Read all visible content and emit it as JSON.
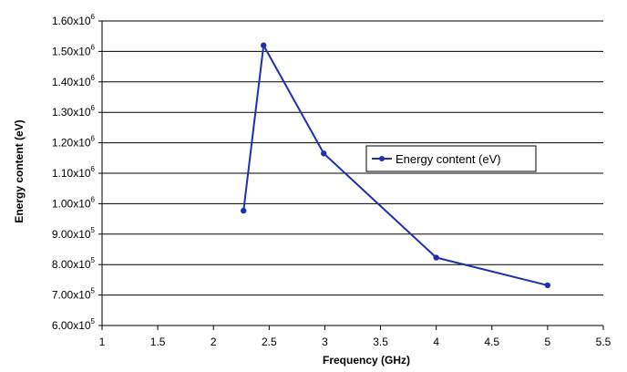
{
  "chart_data": {
    "type": "line",
    "title": "",
    "xlabel": "Frequency (GHz)",
    "ylabel": "Energy content (eV)",
    "xlim": [
      1,
      5.5
    ],
    "ylim": [
      600000,
      1600000
    ],
    "grid": {
      "horizontal": true,
      "vertical": false
    },
    "legend": "center-right",
    "x_ticks": [
      1,
      1.5,
      2,
      2.5,
      3,
      3.5,
      4,
      4.5,
      5,
      5.5
    ],
    "x_tick_labels": [
      "1",
      "1.5",
      "2",
      "2.5",
      "3",
      "3.5",
      "4",
      "4.5",
      "5",
      "5.5"
    ],
    "y_ticks": [
      600000,
      700000,
      800000,
      900000,
      1000000,
      1100000,
      1200000,
      1300000,
      1400000,
      1500000,
      1600000
    ],
    "y_tick_labels": [
      {
        "mant": "6.00x10",
        "exp": "5"
      },
      {
        "mant": "7.00x10",
        "exp": "5"
      },
      {
        "mant": "8.00x10",
        "exp": "5"
      },
      {
        "mant": "9.00x10",
        "exp": "5"
      },
      {
        "mant": "1.00x10",
        "exp": "6"
      },
      {
        "mant": "1.10x10",
        "exp": "6"
      },
      {
        "mant": "1.20x10",
        "exp": "6"
      },
      {
        "mant": "1.30x10",
        "exp": "6"
      },
      {
        "mant": "1.40x10",
        "exp": "6"
      },
      {
        "mant": "1.50x10",
        "exp": "6"
      },
      {
        "mant": "1.60x10",
        "exp": "6"
      }
    ],
    "series": [
      {
        "name": "Energy content (eV)",
        "color": "#1f2fb0",
        "x": [
          2.27,
          2.45,
          2.99,
          4.0,
          5.0
        ],
        "y": [
          977000,
          1520000,
          1165000,
          823000,
          732000
        ]
      }
    ]
  }
}
